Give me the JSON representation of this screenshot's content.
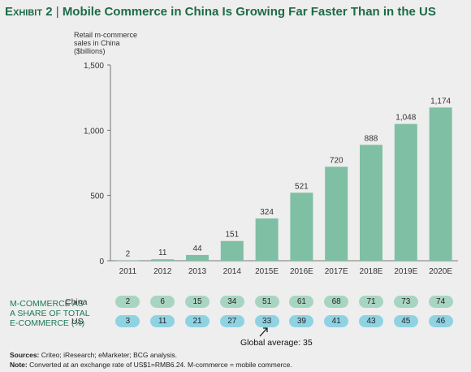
{
  "title": {
    "prefix": "Exhibit 2",
    "separator": " | ",
    "main": "Mobile Commerce in China Is Growing Far Faster Than in the US"
  },
  "chart_data": {
    "type": "bar",
    "ylabel": "Retail m-commerce\nsales in China\n($billions)",
    "categories": [
      "2011",
      "2012",
      "2013",
      "2014",
      "2015E",
      "2016E",
      "2017E",
      "2018E",
      "2019E",
      "2020E"
    ],
    "values": [
      2,
      11,
      44,
      151,
      324,
      521,
      720,
      888,
      1048,
      1174
    ],
    "value_labels": [
      "2",
      "11",
      "44",
      "151",
      "324",
      "521",
      "720",
      "888",
      "1,048",
      "1,174"
    ],
    "ylim": [
      0,
      1500
    ],
    "yticks": [
      0,
      500,
      1000,
      1500
    ],
    "ytick_labels": [
      "0",
      "500",
      "1,000",
      "1,500"
    ],
    "bar_color": "#7fbfa4"
  },
  "share_table": {
    "label": "M-COMMERCE AS\nA SHARE OF TOTAL\nE-COMMERCE (%)",
    "china_label": "China",
    "us_label": "US",
    "china": [
      "2",
      "6",
      "15",
      "34",
      "51",
      "61",
      "68",
      "71",
      "73",
      "74"
    ],
    "us": [
      "3",
      "11",
      "21",
      "27",
      "33",
      "39",
      "41",
      "43",
      "45",
      "46"
    ],
    "china_color": "#a8d5c2",
    "us_color": "#8fd3e3"
  },
  "annotation": {
    "global_average": "Global average: 35"
  },
  "footer": {
    "sources_label": "Sources:",
    "sources_text": " Criteo; iResearch; eMarketer; BCG analysis.",
    "note_label": "Note:",
    "note_text": " Converted at an exchange rate of US$1=RMB6.24. M-commerce = mobile commerce."
  }
}
